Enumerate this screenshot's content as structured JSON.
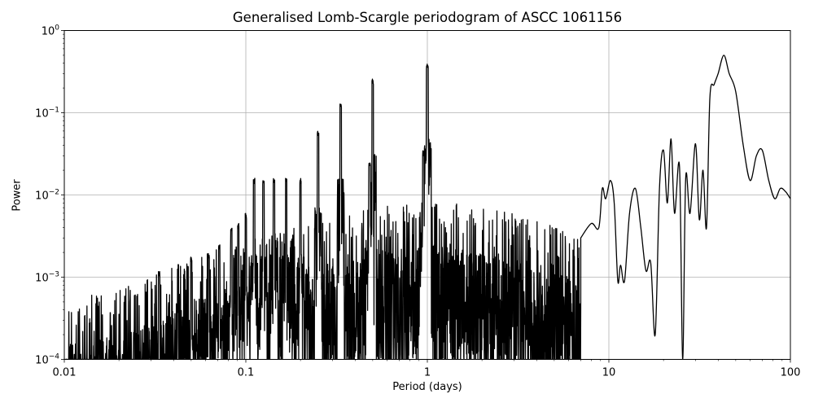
{
  "chart_data": {
    "type": "line",
    "title": "Generalised Lomb-Scargle periodogram of ASCC 1061156",
    "xlabel": "Period (days)",
    "ylabel": "Power",
    "xscale": "log",
    "yscale": "log",
    "xlim": [
      0.01,
      100
    ],
    "ylim": [
      0.0001,
      1
    ],
    "grid": true,
    "x_ticks": [
      {
        "value": 0.01,
        "label": "0.01"
      },
      {
        "value": 0.1,
        "label": "0.1"
      },
      {
        "value": 1,
        "label": "1"
      },
      {
        "value": 10,
        "label": "10"
      },
      {
        "value": 100,
        "label": "100"
      }
    ],
    "y_ticks": [
      {
        "value": 1,
        "label": "10",
        "exp": "0"
      },
      {
        "value": 0.1,
        "label": "10",
        "exp": "−1"
      },
      {
        "value": 0.01,
        "label": "10",
        "exp": "−2"
      },
      {
        "value": 0.001,
        "label": "10",
        "exp": "−3"
      },
      {
        "value": 0.0001,
        "label": "10",
        "exp": "−4"
      }
    ],
    "line_color": "#000000",
    "noise_envelope": {
      "x": [
        0.01,
        0.02,
        0.03,
        0.05,
        0.1,
        0.2,
        0.3,
        0.5,
        1,
        2,
        3,
        5,
        7
      ],
      "y": [
        0.00015,
        0.0002,
        0.0003,
        0.0005,
        0.0008,
        0.0012,
        0.0015,
        0.002,
        0.0025,
        0.002,
        0.0018,
        0.0012,
        0.0008
      ]
    },
    "aliases": [
      {
        "x": 0.0333,
        "y": 0.0012
      },
      {
        "x": 0.05,
        "y": 0.0018
      },
      {
        "x": 0.0625,
        "y": 0.002
      },
      {
        "x": 0.0714,
        "y": 0.0025
      },
      {
        "x": 0.0833,
        "y": 0.004
      },
      {
        "x": 0.0909,
        "y": 0.0045
      },
      {
        "x": 0.1,
        "y": 0.006
      },
      {
        "x": 0.1111,
        "y": 0.016
      },
      {
        "x": 0.125,
        "y": 0.015
      },
      {
        "x": 0.1429,
        "y": 0.016
      },
      {
        "x": 0.1667,
        "y": 0.016
      },
      {
        "x": 0.2,
        "y": 0.016
      },
      {
        "x": 0.25,
        "y": 0.06
      },
      {
        "x": 0.3333,
        "y": 0.13
      },
      {
        "x": 0.5,
        "y": 0.26
      },
      {
        "x": 0.9973,
        "y": 0.4
      },
      {
        "x": 1.003,
        "y": 0.38
      },
      {
        "x": 0.95,
        "y": 0.035
      },
      {
        "x": 0.48,
        "y": 0.025
      }
    ],
    "long_period_curve": {
      "x": [
        7.0,
        8.0,
        8.8,
        9.2,
        9.6,
        10.2,
        10.7,
        11.2,
        11.6,
        12.2,
        13.0,
        14.0,
        15.0,
        16.0,
        17.0,
        18.0,
        19.0,
        20.0,
        21.0,
        22.0,
        23.0,
        24.5,
        25.5,
        26.5,
        28.0,
        30.0,
        31.5,
        33.0,
        34.5,
        36.0,
        38.0,
        40.0,
        43.0,
        46.0,
        50.0,
        55.0,
        60.0,
        65.0,
        70.0,
        76.0,
        82.0,
        88.0,
        94.0,
        100.0
      ],
      "y": [
        0.003,
        0.0045,
        0.004,
        0.012,
        0.009,
        0.015,
        0.008,
        0.0009,
        0.0014,
        0.0009,
        0.006,
        0.012,
        0.004,
        0.0012,
        0.0015,
        0.0002,
        0.012,
        0.035,
        0.008,
        0.048,
        0.006,
        0.022,
        0.0001,
        0.016,
        0.006,
        0.042,
        0.005,
        0.02,
        0.004,
        0.15,
        0.22,
        0.3,
        0.5,
        0.3,
        0.18,
        0.04,
        0.015,
        0.03,
        0.035,
        0.015,
        0.009,
        0.012,
        0.011,
        0.009
      ]
    }
  }
}
